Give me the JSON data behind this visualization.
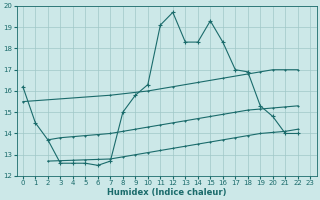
{
  "xlabel": "Humidex (Indice chaleur)",
  "bg_color": "#cce8e8",
  "line_color": "#1a6b6b",
  "grid_color": "#a0c8c8",
  "xlim": [
    -0.5,
    23.5
  ],
  "ylim": [
    12,
    20
  ],
  "yticks": [
    12,
    13,
    14,
    15,
    16,
    17,
    18,
    19,
    20
  ],
  "xticks": [
    0,
    1,
    2,
    3,
    4,
    5,
    6,
    7,
    8,
    9,
    10,
    11,
    12,
    13,
    14,
    15,
    16,
    17,
    18,
    19,
    20,
    21,
    22,
    23
  ],
  "lines": [
    {
      "x": [
        0,
        1,
        2,
        3,
        4,
        5,
        6,
        7,
        8,
        9,
        10,
        11,
        12,
        13,
        14,
        15,
        16,
        17,
        18,
        19,
        20,
        21,
        22
      ],
      "y": [
        16.2,
        14.5,
        13.7,
        12.6,
        12.6,
        12.6,
        12.5,
        12.7,
        15.0,
        15.8,
        16.3,
        19.1,
        19.7,
        18.3,
        18.3,
        19.3,
        18.3,
        17.0,
        16.9,
        15.3,
        14.8,
        14.0,
        14.0
      ]
    },
    {
      "x": [
        0,
        7,
        10,
        12,
        14,
        16,
        18,
        19,
        20,
        21,
        22
      ],
      "y": [
        15.5,
        15.8,
        16.0,
        16.2,
        16.4,
        16.6,
        16.8,
        16.9,
        17.0,
        17.0,
        17.0
      ]
    },
    {
      "x": [
        2,
        3,
        4,
        5,
        6,
        7,
        8,
        9,
        10,
        11,
        12,
        13,
        14,
        15,
        16,
        17,
        18,
        19,
        20,
        21,
        22
      ],
      "y": [
        13.7,
        13.8,
        13.85,
        13.9,
        13.95,
        14.0,
        14.1,
        14.2,
        14.3,
        14.4,
        14.5,
        14.6,
        14.7,
        14.8,
        14.9,
        15.0,
        15.1,
        15.15,
        15.2,
        15.25,
        15.3
      ]
    },
    {
      "x": [
        2,
        3,
        4,
        5,
        6,
        7,
        8,
        9,
        10,
        11,
        12,
        13,
        14,
        15,
        16,
        17,
        18,
        19,
        20,
        21,
        22
      ],
      "y": [
        12.7,
        12.72,
        12.74,
        12.76,
        12.78,
        12.8,
        12.9,
        13.0,
        13.1,
        13.2,
        13.3,
        13.4,
        13.5,
        13.6,
        13.7,
        13.8,
        13.9,
        14.0,
        14.05,
        14.1,
        14.2
      ]
    }
  ]
}
